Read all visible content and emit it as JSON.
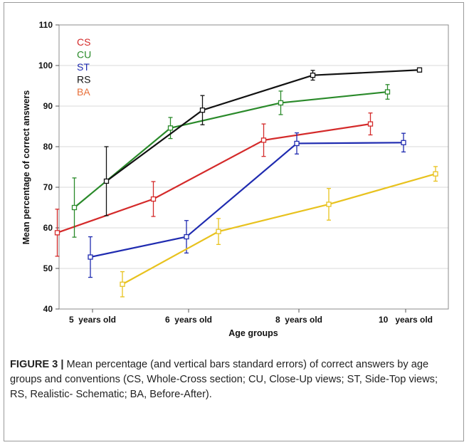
{
  "chart_data": {
    "type": "line",
    "title": "",
    "xlabel": "Age groups",
    "ylabel": "Mean percentage of correct answers",
    "categories": [
      "5  years old",
      "6  years old",
      "8  years old",
      "10   years old"
    ],
    "ylim": [
      40,
      110
    ],
    "yticks": [
      40,
      50,
      60,
      70,
      80,
      90,
      100,
      110
    ],
    "grid": "horizontal",
    "legend_placement": "top-left",
    "series": [
      {
        "name": "CS",
        "color": "#d42a2a",
        "offset": -0.33,
        "values": [
          58.8,
          67.1,
          81.6,
          85.6
        ],
        "errors": [
          5.8,
          4.3,
          4.0,
          2.7
        ]
      },
      {
        "name": "CU",
        "color": "#2a8a2a",
        "offset": -0.17,
        "values": [
          65.0,
          84.6,
          90.8,
          93.5
        ],
        "errors": [
          7.3,
          2.6,
          2.9,
          1.8
        ]
      },
      {
        "name": "ST",
        "color": "#1f2bb0",
        "offset": -0.02,
        "values": [
          52.8,
          57.8,
          80.8,
          81.0
        ],
        "errors": [
          5.0,
          4.0,
          2.6,
          2.3
        ]
      },
      {
        "name": "RS",
        "color": "#111111",
        "offset": 0.13,
        "values": [
          71.5,
          89.0,
          97.6,
          98.9
        ],
        "errors": [
          8.5,
          3.6,
          1.2,
          0.5
        ]
      },
      {
        "name": "BA",
        "color": "#e8c21e",
        "offset": 0.28,
        "values": [
          46.1,
          59.1,
          65.8,
          73.3
        ],
        "errors": [
          3.1,
          3.2,
          3.9,
          1.8
        ]
      }
    ],
    "legend_text_colors": [
      "#d42a2a",
      "#2a8a2a",
      "#1f2bb0",
      "#111111",
      "#e8703a"
    ]
  },
  "caption": {
    "label": "FIGURE 3 |",
    "text": " Mean percentage (and vertical bars standard errors) of correct answers by age groups and conventions (CS, Whole-Cross section; CU, Close-Up views; ST, Side-Top views; RS, Realistic- Schematic; BA, Before-After)."
  }
}
